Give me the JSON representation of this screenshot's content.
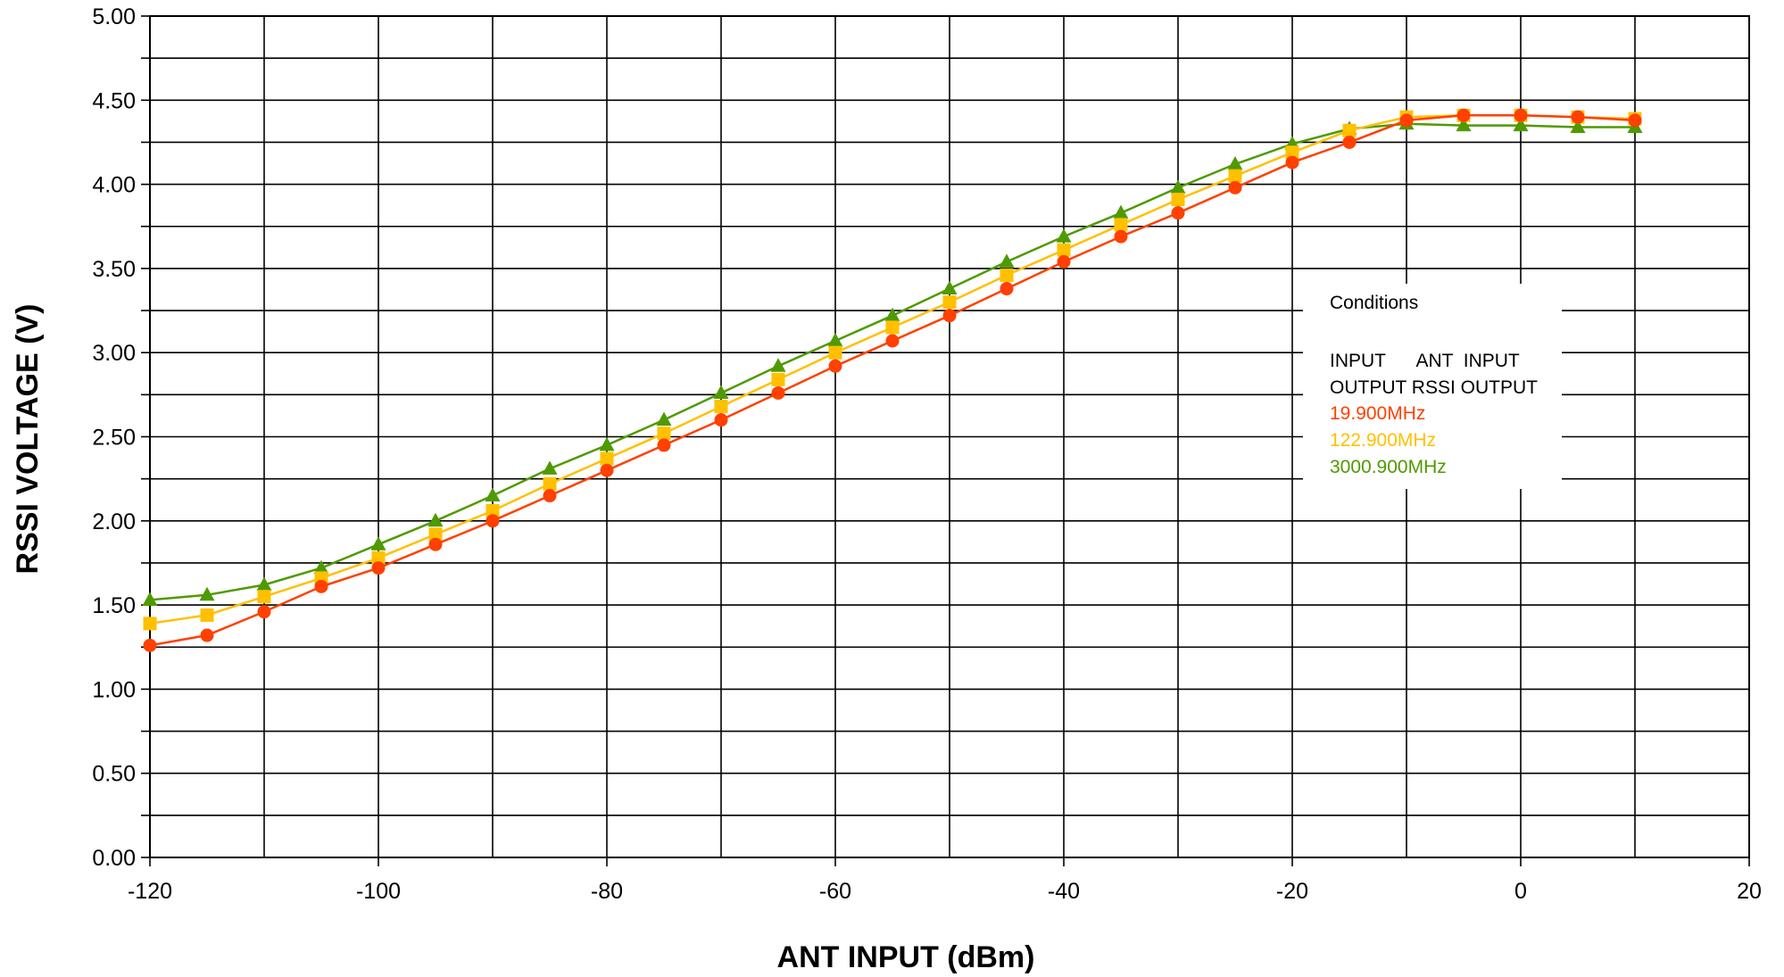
{
  "chart_data": {
    "type": "line",
    "xlabel": "ANT INPUT (dBm)",
    "ylabel": "RSSI VOLTAGE (V)",
    "xlim": [
      -120,
      20
    ],
    "ylim": [
      0,
      5
    ],
    "x_ticks": [
      "-120",
      "-100",
      "-80",
      "-60",
      "-40",
      "-20",
      "0",
      "20"
    ],
    "y_ticks": [
      "0.00",
      "0.50",
      "1.00",
      "1.50",
      "2.00",
      "2.50",
      "3.00",
      "3.50",
      "4.00",
      "4.50",
      "5.00"
    ],
    "grid": true,
    "x": [
      -120,
      -115,
      -110,
      -105,
      -100,
      -95,
      -90,
      -85,
      -80,
      -75,
      -70,
      -65,
      -60,
      -55,
      -50,
      -45,
      -40,
      -35,
      -30,
      -25,
      -20,
      -15,
      -10,
      -5,
      0,
      5,
      10
    ],
    "series": [
      {
        "name": "19.900MHz",
        "color": "#ff4000",
        "marker": "circle",
        "values": [
          1.26,
          1.32,
          1.46,
          1.61,
          1.72,
          1.86,
          2.0,
          2.15,
          2.3,
          2.45,
          2.6,
          2.76,
          2.92,
          3.07,
          3.22,
          3.38,
          3.54,
          3.69,
          3.83,
          3.98,
          4.13,
          4.25,
          4.38,
          4.41,
          4.41,
          4.4,
          4.38
        ]
      },
      {
        "name": "122.900MHz",
        "color": "#ffc000",
        "marker": "square",
        "values": [
          1.39,
          1.44,
          1.55,
          1.66,
          1.78,
          1.92,
          2.06,
          2.22,
          2.37,
          2.52,
          2.68,
          2.84,
          3.0,
          3.15,
          3.3,
          3.46,
          3.61,
          3.76,
          3.91,
          4.05,
          4.19,
          4.32,
          4.4,
          4.41,
          4.41,
          4.4,
          4.39
        ]
      },
      {
        "name": "3000.900MHz",
        "color": "#4f9a00",
        "marker": "triangle",
        "values": [
          1.53,
          1.56,
          1.62,
          1.72,
          1.86,
          2.0,
          2.15,
          2.31,
          2.45,
          2.6,
          2.76,
          2.92,
          3.07,
          3.22,
          3.38,
          3.54,
          3.69,
          3.83,
          3.98,
          4.12,
          4.24,
          4.33,
          4.36,
          4.35,
          4.35,
          4.34,
          4.34
        ]
      }
    ],
    "legend": {
      "placement": "right",
      "lines": [
        "Conditions",
        "INPUT      ANT  INPUT",
        "OUTPUT  RSSI OUTPUT"
      ]
    }
  }
}
